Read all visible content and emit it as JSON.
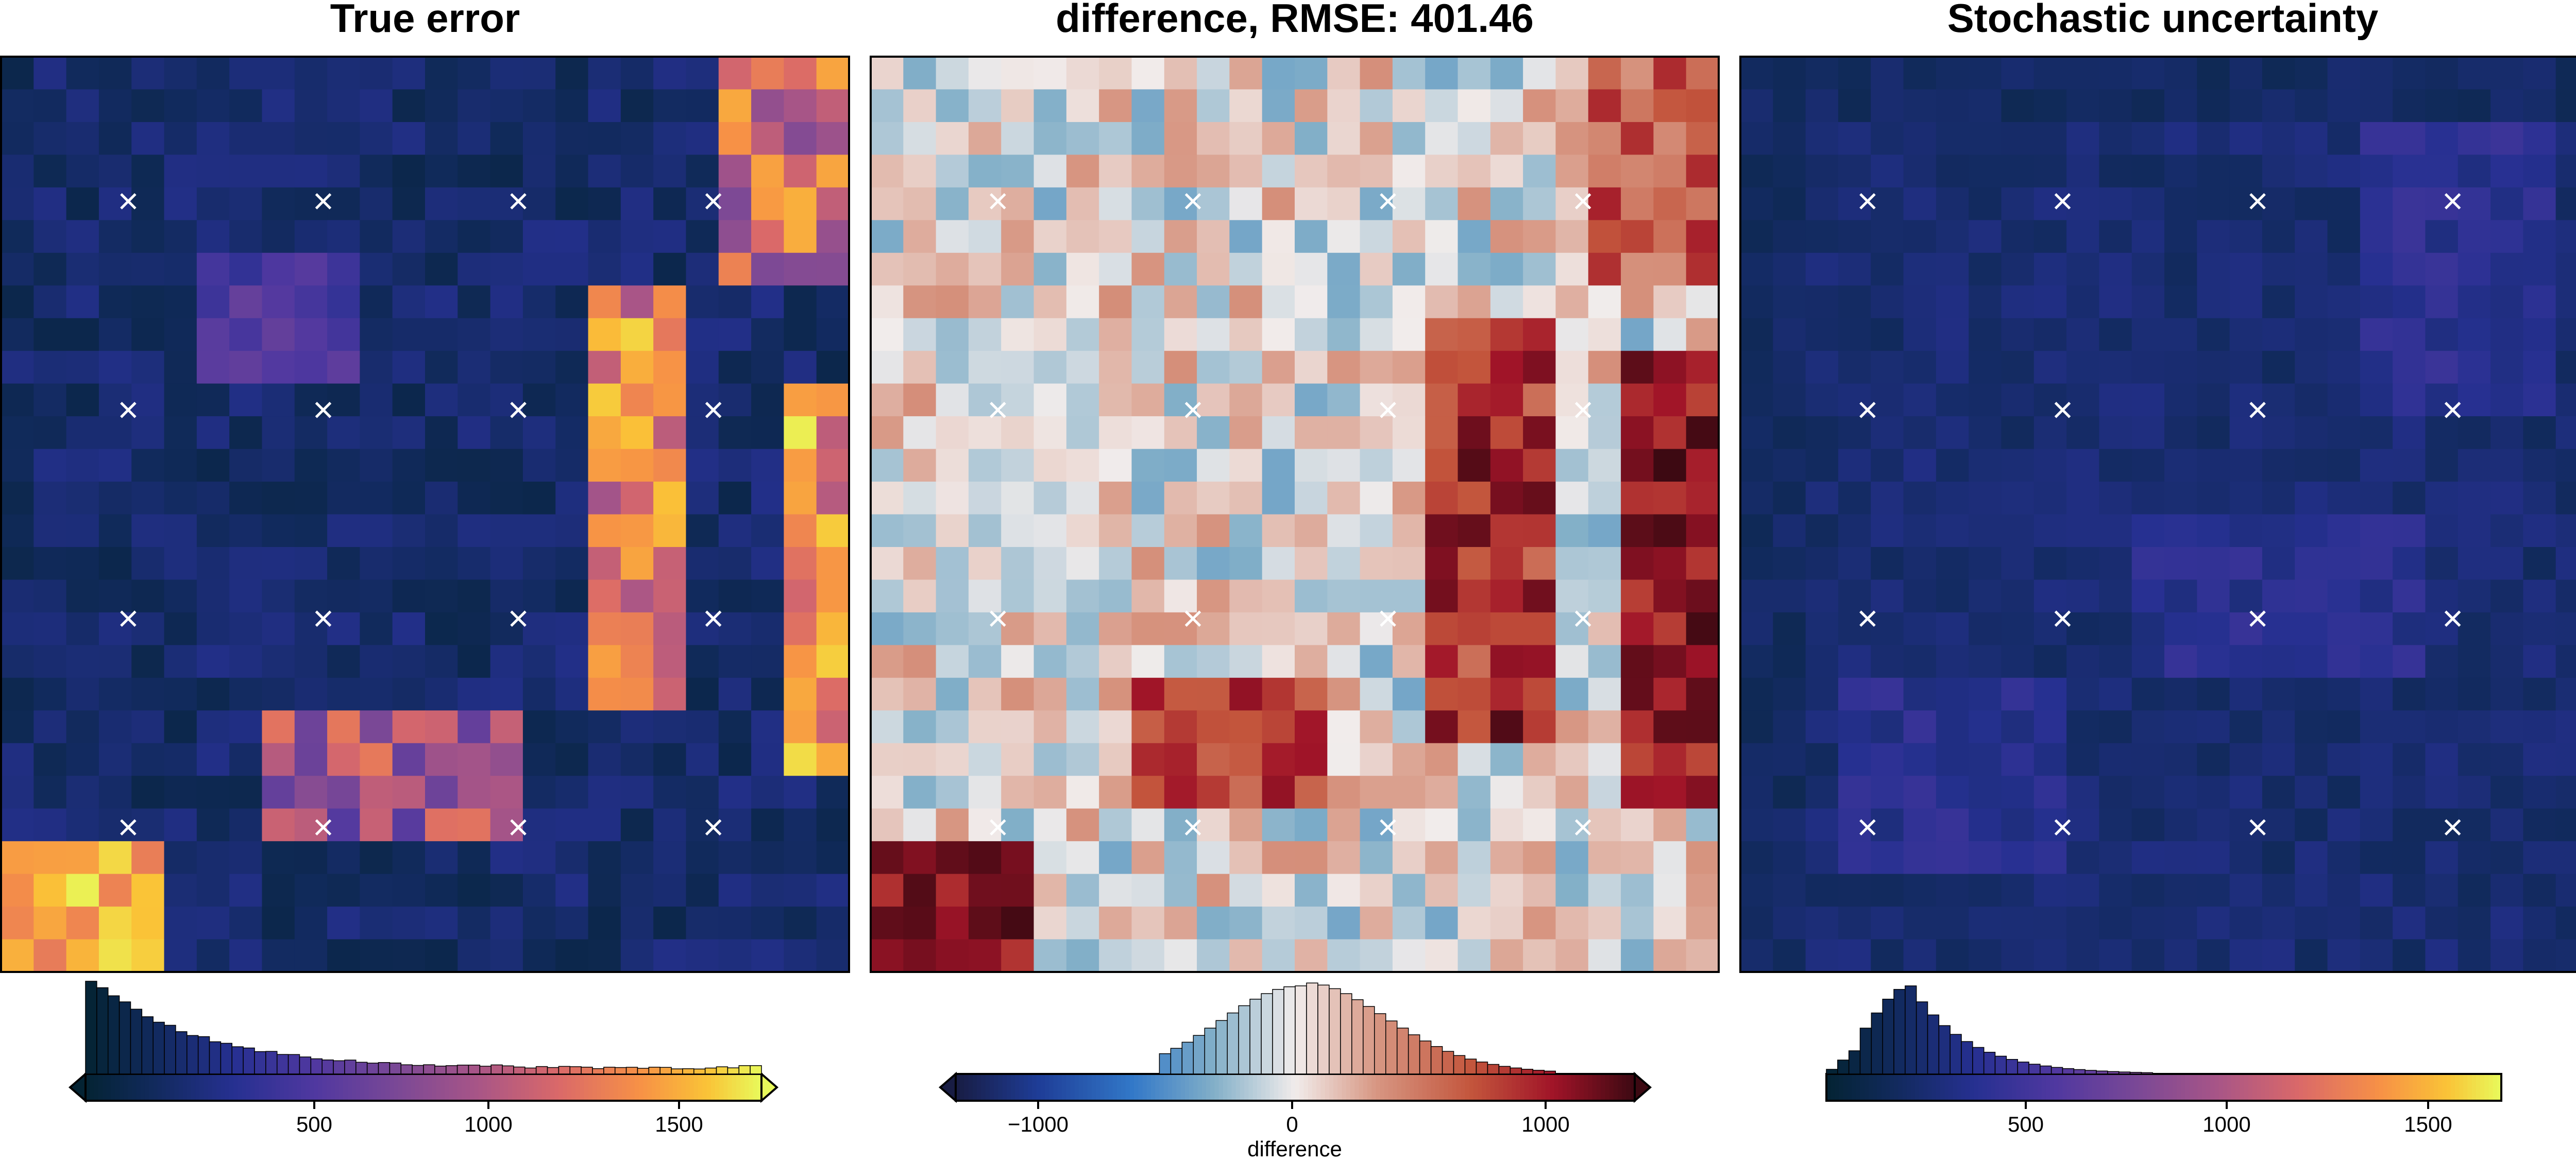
{
  "chart_data": [
    {
      "type": "heatmap",
      "title": "True error",
      "grid": {
        "cols": 26,
        "rows": 28
      },
      "markers": "white-x at sample points, 4 columns x 4 rows",
      "colormap": "thermal (dark navy → purple → orange → yellow)",
      "color_range": [
        0,
        1700
      ],
      "colorbar": {
        "ticks": [
          500,
          1000,
          1500
        ],
        "label": "",
        "extend": "both",
        "histogram": true
      },
      "notes": "high-error vertical bands at right side; bright patch lower-left corner"
    },
    {
      "type": "heatmap",
      "title": "difference, RMSE: 401.46",
      "grid": {
        "cols": 26,
        "rows": 28
      },
      "markers": "white-x at sample points, 4 columns x 4 rows",
      "colormap": "balance (navy → blue → white → red → maroon)",
      "color_range": [
        -1300,
        1300
      ],
      "colorbar": {
        "ticks": [
          -1000,
          0,
          1000
        ],
        "label": "difference",
        "extend": "both",
        "histogram": true
      },
      "notes": "mostly near zero; strong positive (red) bands on right; dark maroon lower-left"
    },
    {
      "type": "heatmap",
      "title": "Stochastic uncertainty",
      "grid": {
        "cols": 26,
        "rows": 28
      },
      "markers": "white-x at sample points, 4 columns x 4 rows",
      "colormap": "thermal (dark navy → purple → orange → yellow)",
      "color_range": [
        0,
        1700
      ],
      "colorbar": {
        "ticks": [
          500,
          1000,
          1500
        ],
        "label": "",
        "extend": "neither",
        "histogram": true
      },
      "notes": "smooth low-to-moderate values, dark navy to mid purple"
    }
  ],
  "texts": {
    "title_1": "True error",
    "title_2": "difference, RMSE: 401.46",
    "title_3": "Stochastic uncertainty",
    "cb1_tick_0": "500",
    "cb1_tick_1": "1000",
    "cb1_tick_2": "1500",
    "cb2_tick_0": "−1000",
    "cb2_tick_1": "0",
    "cb2_tick_2": "1000",
    "cb2_label": "difference",
    "cb3_tick_0": "500",
    "cb3_tick_1": "1000",
    "cb3_tick_2": "1500"
  }
}
